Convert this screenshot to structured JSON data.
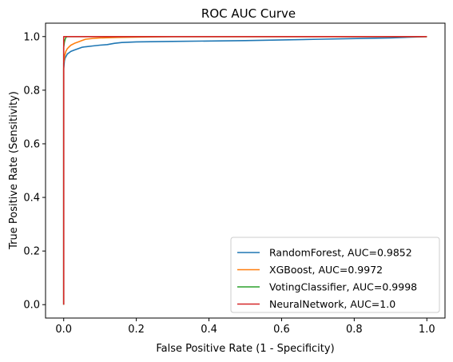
{
  "chart_data": {
    "type": "line",
    "title": "ROC AUC Curve",
    "xlabel": "False Positive Rate (1 - Specificity)",
    "ylabel": "True Positive Rate (Sensitivity)",
    "xlim": [
      -0.05,
      1.05
    ],
    "ylim": [
      -0.05,
      1.05
    ],
    "xticks": [
      0.0,
      0.2,
      0.4,
      0.6,
      0.8,
      1.0
    ],
    "yticks": [
      0.0,
      0.2,
      0.4,
      0.6,
      0.8,
      1.0
    ],
    "xtick_labels": [
      "0.0",
      "0.2",
      "0.4",
      "0.6",
      "0.8",
      "1.0"
    ],
    "ytick_labels": [
      "0.0",
      "0.2",
      "0.4",
      "0.6",
      "0.8",
      "1.0"
    ],
    "grid": false,
    "legend_position": "lower-right",
    "series": [
      {
        "name": "RandomForest, AUC=0.9852",
        "color": "#1f77b4",
        "x": [
          0,
          0,
          0.002,
          0.004,
          0.006,
          0.008,
          0.01,
          0.015,
          0.02,
          0.03,
          0.04,
          0.05,
          0.06,
          0.08,
          0.1,
          0.12,
          0.14,
          0.16,
          0.2,
          0.3,
          0.5,
          0.7,
          0.9,
          1.0
        ],
        "y": [
          0,
          0.88,
          0.91,
          0.92,
          0.925,
          0.93,
          0.935,
          0.94,
          0.945,
          0.95,
          0.955,
          0.96,
          0.962,
          0.965,
          0.968,
          0.97,
          0.975,
          0.978,
          0.98,
          0.982,
          0.985,
          0.99,
          0.995,
          1.0
        ]
      },
      {
        "name": "XGBoost, AUC=0.9972",
        "color": "#ff7f0e",
        "x": [
          0,
          0,
          0.003,
          0.006,
          0.01,
          0.015,
          0.02,
          0.03,
          0.04,
          0.05,
          0.06,
          0.08,
          0.1,
          0.15,
          0.2,
          0.3,
          1.0
        ],
        "y": [
          0,
          0.9,
          0.93,
          0.945,
          0.955,
          0.962,
          0.968,
          0.975,
          0.98,
          0.985,
          0.99,
          0.993,
          0.995,
          0.997,
          0.998,
          1.0,
          1.0
        ]
      },
      {
        "name": "VotingClassifier, AUC=0.9998",
        "color": "#2ca02c",
        "x": [
          0,
          0,
          0.002,
          0.004,
          0.006,
          0.01,
          1.0
        ],
        "y": [
          0,
          0.96,
          0.98,
          0.99,
          0.997,
          1.0,
          1.0
        ]
      },
      {
        "name": "NeuralNetwork, AUC=1.0",
        "color": "#d62728",
        "x": [
          0,
          0,
          1.0
        ],
        "y": [
          0,
          1.0,
          1.0
        ]
      }
    ]
  }
}
